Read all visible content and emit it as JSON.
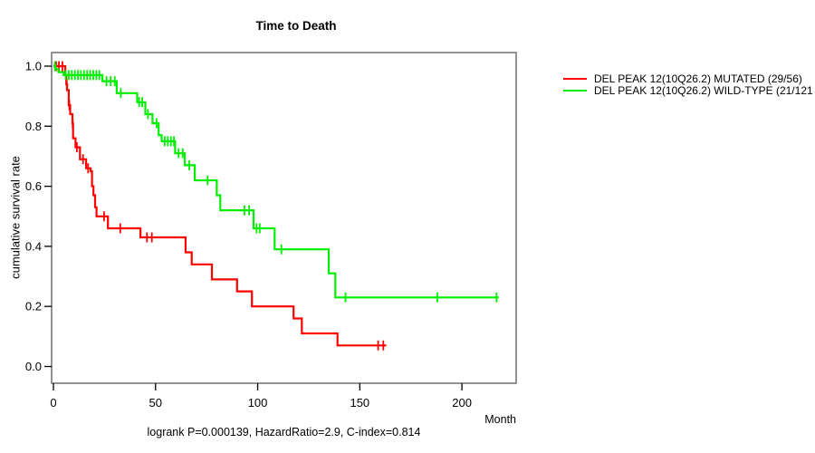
{
  "title": "Time to Death",
  "chart_data": {
    "type": "line",
    "subtype": "kaplan-meier-step",
    "title": "Time to Death",
    "xlabel": "Month",
    "ylabel": "cumulative survival rate",
    "annotation": "logrank P=0.000139, HazardRatio=2.9, C-index=0.814",
    "grid": false,
    "legend_position": "outside-right",
    "xlim": [
      0,
      226
    ],
    "ylim": [
      0,
      1.0
    ],
    "x_ticks": [
      0,
      50,
      100,
      150,
      200
    ],
    "x_tick_labels": [
      "0",
      "50",
      "100",
      "150",
      "200"
    ],
    "y_ticks": [
      0.0,
      0.2,
      0.4,
      0.6,
      0.8,
      1.0
    ],
    "y_tick_labels": [
      "0.0",
      "0.2",
      "0.4",
      "0.6",
      "0.8",
      "1.0"
    ],
    "frame_color": "#787878",
    "axis_color": "#000000",
    "series": [
      {
        "name": "DEL PEAK 12(10Q26.2) MUTATED (29/56)",
        "color": "#ff0000",
        "end_month": 163,
        "steps": [
          [
            0,
            1.0
          ],
          [
            5.8,
            0.97
          ],
          [
            6.3,
            0.94
          ],
          [
            6.7,
            0.92
          ],
          [
            7.5,
            0.87
          ],
          [
            8.2,
            0.84
          ],
          [
            9.3,
            0.81
          ],
          [
            9.6,
            0.76
          ],
          [
            10.8,
            0.73
          ],
          [
            13,
            0.69
          ],
          [
            16,
            0.66
          ],
          [
            18.2,
            0.65
          ],
          [
            18.9,
            0.6
          ],
          [
            19.6,
            0.57
          ],
          [
            20.4,
            0.53
          ],
          [
            21.1,
            0.5
          ],
          [
            26.7,
            0.46
          ],
          [
            42.6,
            0.43
          ],
          [
            64.7,
            0.38
          ],
          [
            67.7,
            0.34
          ],
          [
            77.6,
            0.29
          ],
          [
            89.9,
            0.25
          ],
          [
            97.2,
            0.2
          ],
          [
            117.6,
            0.16
          ],
          [
            121.6,
            0.11
          ],
          [
            139.1,
            0.07
          ]
        ],
        "censor_marks": [
          [
            1.3,
            1.0
          ],
          [
            2.7,
            1.0
          ],
          [
            4.4,
            1.0
          ],
          [
            6.5,
            0.94
          ],
          [
            7.8,
            0.87
          ],
          [
            9.4,
            0.81
          ],
          [
            11.5,
            0.73
          ],
          [
            14.5,
            0.69
          ],
          [
            17,
            0.66
          ],
          [
            24.8,
            0.5
          ],
          [
            32.7,
            0.46
          ],
          [
            45.8,
            0.43
          ],
          [
            48.2,
            0.43
          ],
          [
            159,
            0.07
          ],
          [
            161.5,
            0.07
          ]
        ]
      },
      {
        "name": "DEL PEAK 12(10Q26.2) WILD-TYPE (21/121",
        "color": "#00ee00",
        "end_month": 218,
        "steps": [
          [
            0,
            1.0
          ],
          [
            1,
            0.99
          ],
          [
            2.5,
            0.98
          ],
          [
            5,
            0.97
          ],
          [
            24,
            0.95
          ],
          [
            31,
            0.91
          ],
          [
            41,
            0.88
          ],
          [
            45,
            0.84
          ],
          [
            48.5,
            0.81
          ],
          [
            51.5,
            0.77
          ],
          [
            53,
            0.75
          ],
          [
            59.6,
            0.71
          ],
          [
            64.3,
            0.67
          ],
          [
            69.2,
            0.62
          ],
          [
            80,
            0.57
          ],
          [
            81.7,
            0.52
          ],
          [
            98,
            0.46
          ],
          [
            108.3,
            0.39
          ],
          [
            134.8,
            0.31
          ],
          [
            138,
            0.23
          ]
        ],
        "censor_marks": [
          [
            0.7,
            1.0
          ],
          [
            6,
            0.97
          ],
          [
            7.5,
            0.97
          ],
          [
            9,
            0.97
          ],
          [
            10.5,
            0.97
          ],
          [
            12,
            0.97
          ],
          [
            13.5,
            0.97
          ],
          [
            15,
            0.97
          ],
          [
            16.5,
            0.97
          ],
          [
            18,
            0.97
          ],
          [
            19.5,
            0.97
          ],
          [
            21,
            0.97
          ],
          [
            22.5,
            0.97
          ],
          [
            26,
            0.95
          ],
          [
            28,
            0.95
          ],
          [
            30,
            0.95
          ],
          [
            33,
            0.91
          ],
          [
            42,
            0.88
          ],
          [
            43.5,
            0.88
          ],
          [
            46.3,
            0.84
          ],
          [
            50.5,
            0.81
          ],
          [
            54.5,
            0.75
          ],
          [
            56,
            0.75
          ],
          [
            57.5,
            0.75
          ],
          [
            59,
            0.75
          ],
          [
            61.3,
            0.71
          ],
          [
            63.3,
            0.71
          ],
          [
            66.5,
            0.67
          ],
          [
            75.5,
            0.62
          ],
          [
            93.5,
            0.52
          ],
          [
            95.8,
            0.52
          ],
          [
            99.5,
            0.46
          ],
          [
            101,
            0.46
          ],
          [
            111.6,
            0.39
          ],
          [
            143,
            0.23
          ],
          [
            188,
            0.23
          ],
          [
            217,
            0.23
          ]
        ]
      }
    ]
  }
}
